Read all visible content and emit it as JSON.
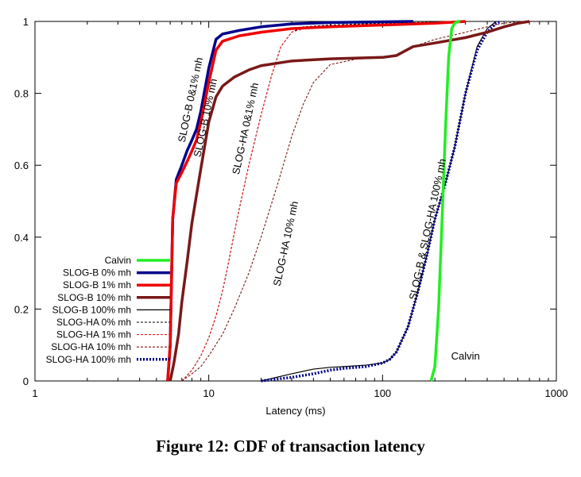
{
  "caption": "Figure 12: CDF of transaction latency",
  "chart_data": {
    "type": "line",
    "title": "",
    "xlabel": "Latency (ms)",
    "ylabel": "",
    "xscale": "log",
    "xlim": [
      1,
      1000
    ],
    "ylim": [
      0,
      1
    ],
    "xticks": [
      "1",
      "10",
      "100",
      "1000"
    ],
    "yticks": [
      "0",
      "0.2",
      "0.4",
      "0.6",
      "0.8",
      "1"
    ],
    "grid": false,
    "legend_position": "bottom-left",
    "series": [
      {
        "name": "Calvin",
        "color": "#22ee22",
        "style": "solid-thick",
        "x": [
          190,
          200,
          210,
          220,
          230,
          240,
          250,
          260,
          270,
          280
        ],
        "y": [
          0,
          0.04,
          0.2,
          0.45,
          0.7,
          0.9,
          0.98,
          0.995,
          1,
          1
        ]
      },
      {
        "name": "SLOG-B 0% mh",
        "color": "#00008b",
        "style": "solid-thick",
        "x": [
          5.8,
          6.0,
          6.2,
          6.5,
          7.0,
          7.5,
          8.0,
          8.5,
          9.0,
          10.0,
          11.0,
          12.0,
          15.0,
          20.0,
          30.0,
          50.0,
          100.0,
          150.0
        ],
        "y": [
          0,
          0.1,
          0.45,
          0.56,
          0.6,
          0.64,
          0.67,
          0.7,
          0.75,
          0.87,
          0.95,
          0.965,
          0.975,
          0.985,
          0.993,
          0.997,
          0.999,
          1
        ]
      },
      {
        "name": "SLOG-B 1% mh",
        "color": "#ee0000",
        "style": "solid-thick",
        "x": [
          5.8,
          6.0,
          6.2,
          6.5,
          7.0,
          7.5,
          8.0,
          8.5,
          9.0,
          10.0,
          11.0,
          12.0,
          15.0,
          20.0,
          30.0,
          50.0,
          100.0,
          200.0,
          300.0
        ],
        "y": [
          0,
          0.1,
          0.45,
          0.55,
          0.58,
          0.61,
          0.64,
          0.67,
          0.72,
          0.83,
          0.92,
          0.945,
          0.96,
          0.97,
          0.98,
          0.985,
          0.99,
          0.995,
          1
        ]
      },
      {
        "name": "SLOG-B 10% mh",
        "color": "#7a1818",
        "style": "solid-thick",
        "x": [
          6.0,
          6.3,
          6.7,
          7.0,
          7.5,
          8.0,
          9.0,
          10.0,
          11.0,
          12.0,
          14.0,
          17.0,
          20.0,
          30.0,
          50.0,
          100.0,
          120.0,
          150.0,
          200.0,
          300.0,
          400.0,
          500.0,
          600.0,
          700.0
        ],
        "y": [
          0,
          0.05,
          0.13,
          0.22,
          0.33,
          0.44,
          0.59,
          0.72,
          0.79,
          0.82,
          0.845,
          0.865,
          0.877,
          0.89,
          0.896,
          0.9,
          0.905,
          0.93,
          0.94,
          0.955,
          0.97,
          0.985,
          0.995,
          1
        ]
      },
      {
        "name": "SLOG-B 100% mh",
        "color": "#000000",
        "style": "solid-thin",
        "x": [
          20,
          30,
          40,
          50,
          60,
          80,
          100,
          110,
          120,
          140,
          160,
          180,
          200,
          230,
          260,
          300,
          350,
          400,
          450
        ],
        "y": [
          0,
          0.02,
          0.033,
          0.038,
          0.04,
          0.044,
          0.05,
          0.06,
          0.08,
          0.15,
          0.25,
          0.35,
          0.45,
          0.55,
          0.65,
          0.8,
          0.93,
          0.98,
          1
        ]
      },
      {
        "name": "SLOG-HA 0% mh",
        "color": "#000000",
        "style": "dashed",
        "x": [
          7.0,
          8.0,
          9.0,
          10.0,
          11.0,
          12.0,
          13.0,
          14.0,
          15.0,
          17.0,
          20.0,
          23.0,
          26.0,
          30.0,
          35.0,
          50.0,
          100.0,
          200.0,
          300.0
        ],
        "y": [
          0,
          0.03,
          0.07,
          0.12,
          0.18,
          0.25,
          0.33,
          0.41,
          0.48,
          0.6,
          0.74,
          0.85,
          0.93,
          0.97,
          0.985,
          0.99,
          0.995,
          0.998,
          1
        ]
      },
      {
        "name": "SLOG-HA 1% mh",
        "color": "#ee2222",
        "style": "dashed",
        "x": [
          7.0,
          8.0,
          9.0,
          10.0,
          11.0,
          12.0,
          13.0,
          14.0,
          15.0,
          17.0,
          20.0,
          23.0,
          26.0,
          30.0,
          35.0,
          50.0,
          100.0,
          200.0,
          300.0
        ],
        "y": [
          0,
          0.03,
          0.07,
          0.12,
          0.18,
          0.25,
          0.33,
          0.41,
          0.48,
          0.6,
          0.74,
          0.85,
          0.93,
          0.97,
          0.98,
          0.985,
          0.99,
          0.995,
          1
        ]
      },
      {
        "name": "SLOG-HA 10% mh",
        "color": "#7a1818",
        "style": "dashed",
        "x": [
          7.0,
          8.0,
          9.0,
          10.0,
          12.0,
          14.0,
          17.0,
          20.0,
          25.0,
          30.0,
          35.0,
          40.0,
          50.0,
          70.0,
          100.0,
          120.0,
          150.0,
          200.0,
          300.0,
          400.0,
          500.0,
          600.0,
          700.0
        ],
        "y": [
          0,
          0.02,
          0.04,
          0.07,
          0.13,
          0.2,
          0.3,
          0.4,
          0.55,
          0.68,
          0.77,
          0.83,
          0.88,
          0.895,
          0.9,
          0.905,
          0.93,
          0.95,
          0.97,
          0.985,
          0.995,
          0.999,
          1
        ]
      },
      {
        "name": "SLOG-HA 100% mh",
        "color": "#00008b",
        "style": "dotted-thick",
        "x": [
          20,
          30,
          40,
          50,
          60,
          80,
          100,
          110,
          120,
          140,
          160,
          180,
          200,
          230,
          260,
          300,
          350,
          400,
          450,
          480
        ],
        "y": [
          0,
          0.01,
          0.02,
          0.03,
          0.035,
          0.04,
          0.05,
          0.06,
          0.08,
          0.15,
          0.25,
          0.35,
          0.45,
          0.55,
          0.65,
          0.8,
          0.92,
          0.97,
          0.995,
          1
        ]
      }
    ],
    "annotations": [
      {
        "text": "SLOG-B 0&1% mh",
        "x": 8.2,
        "y": 0.78,
        "angle": -78
      },
      {
        "text": "SLOG-B 10% mh",
        "x": 10.0,
        "y": 0.73,
        "angle": -78
      },
      {
        "text": "SLOG-HA 0&1% mh",
        "x": 17.0,
        "y": 0.7,
        "angle": -78
      },
      {
        "text": "SLOG-HA 10% mh",
        "x": 29.0,
        "y": 0.38,
        "angle": -78
      },
      {
        "text": "SLOG-B & SLOG-HA 100% mh",
        "x": 190.0,
        "y": 0.42,
        "angle": -78
      },
      {
        "text": "Calvin",
        "x": 300.0,
        "y": 0.06,
        "angle": 0
      }
    ]
  }
}
